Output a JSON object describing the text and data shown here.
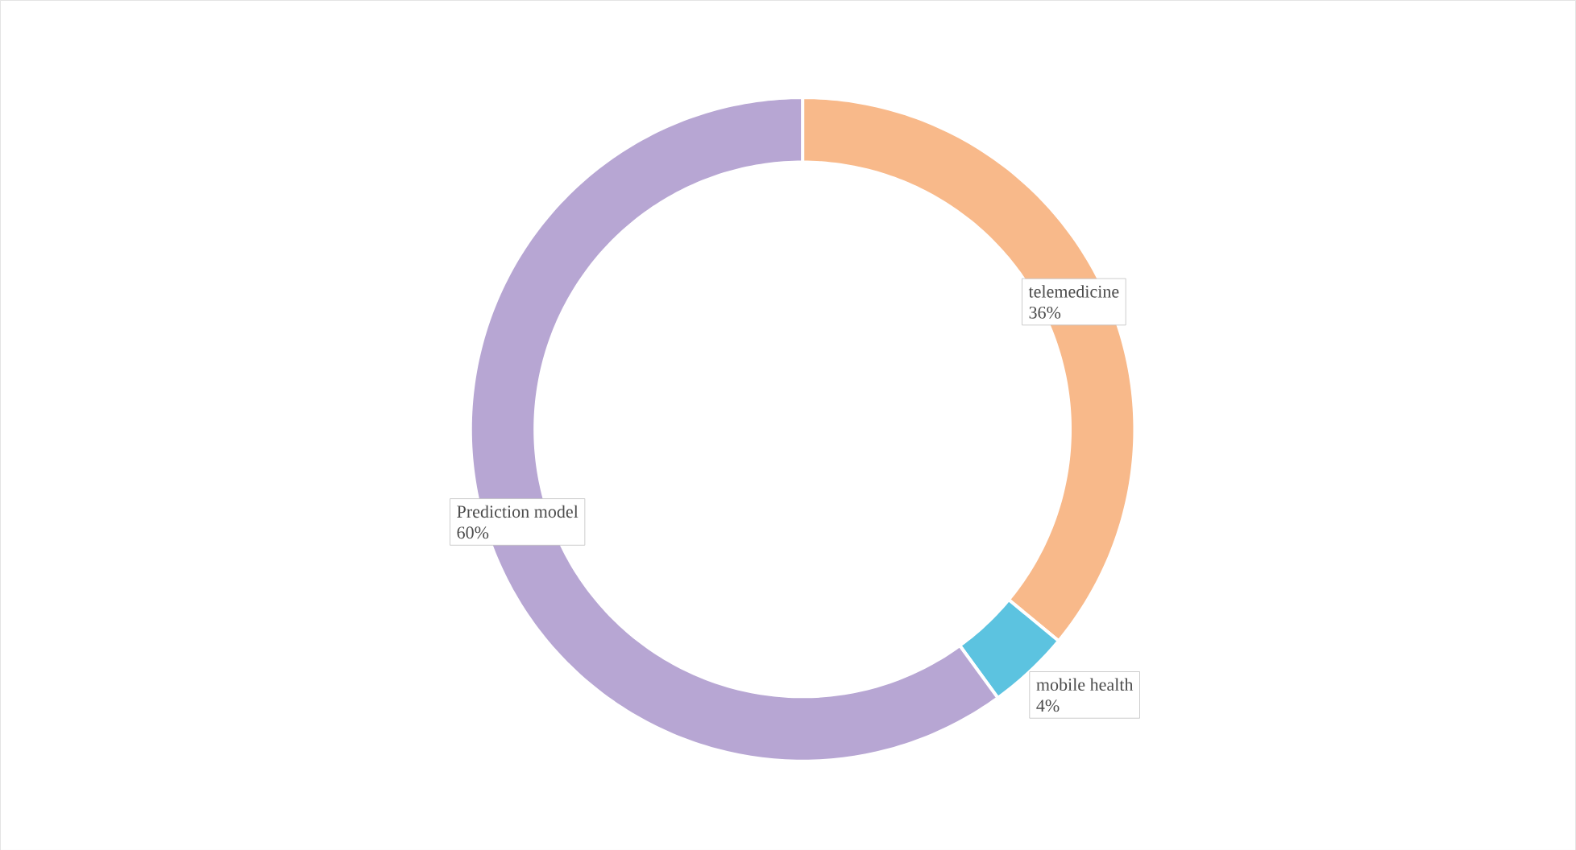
{
  "chart_data": {
    "type": "donut",
    "categories": [
      "telemedicine",
      "mobile health",
      "Prediction model"
    ],
    "values": [
      36,
      4,
      60
    ],
    "colors": [
      "#f8b98a",
      "#5cc3e0",
      "#b7a6d3"
    ],
    "value_labels": [
      "36%",
      "4%",
      "60%"
    ]
  }
}
